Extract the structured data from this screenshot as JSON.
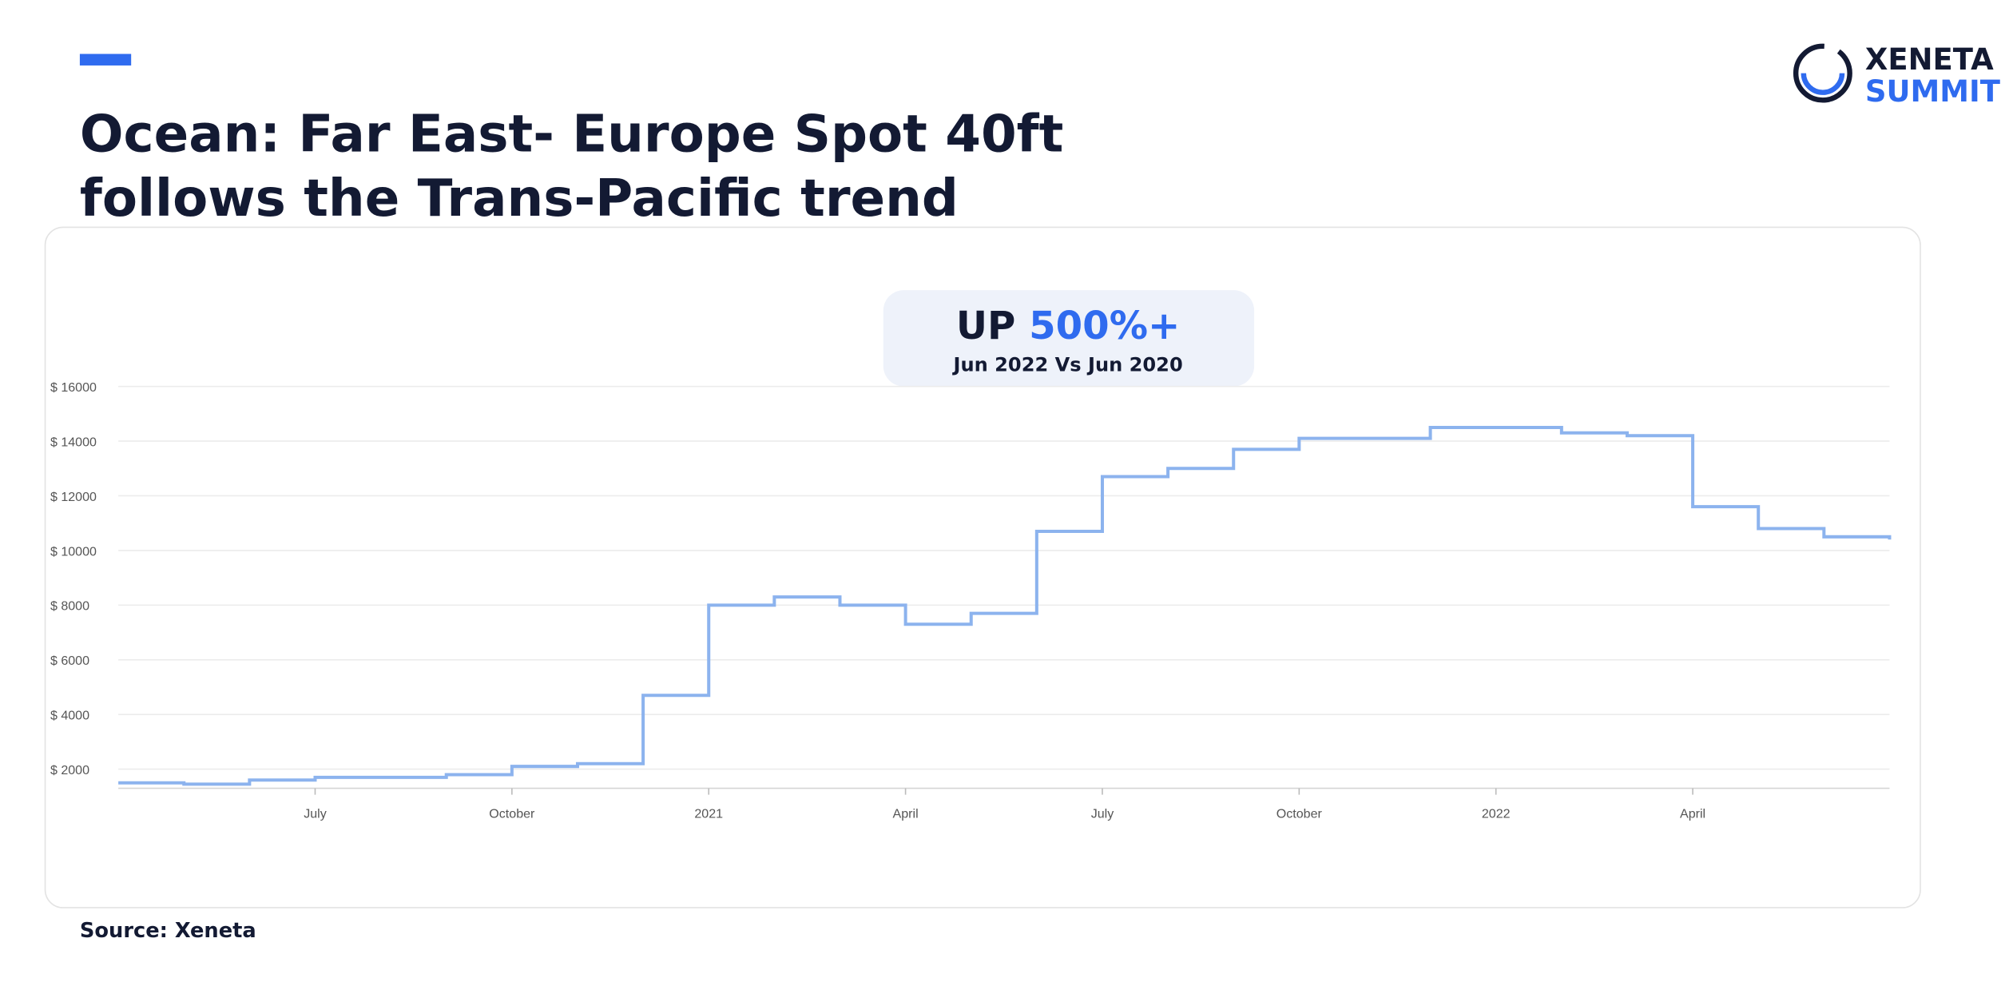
{
  "logo": [
    "XENETA",
    "SUMMIT"
  ],
  "chart_data": {
    "type": "step",
    "title": [
      "Ocean: Far East- Europe Spot 40ft",
      "follows the Trans-Pacific trend"
    ],
    "annotation": {
      "prefix": "UP",
      "highlight": "500%+",
      "caption": "Jun 2022 Vs Jun 2020"
    },
    "source": "Source: Xeneta",
    "color": "#8cb3ee",
    "x": [
      "2020-04",
      "2020-05",
      "2020-06",
      "2020-07",
      "2020-08",
      "2020-09",
      "2020-10",
      "2020-11",
      "2020-12",
      "2021-01",
      "2021-02",
      "2021-03",
      "2021-04",
      "2021-05",
      "2021-06",
      "2021-07",
      "2021-08",
      "2021-09",
      "2021-10",
      "2021-11",
      "2021-12",
      "2022-01",
      "2022-02",
      "2022-03",
      "2022-04",
      "2022-05",
      "2022-06",
      "2022-07"
    ],
    "values": [
      1500,
      1450,
      1600,
      1700,
      1700,
      1800,
      2100,
      2200,
      4700,
      8000,
      8300,
      8000,
      7300,
      7700,
      10700,
      12700,
      13000,
      13700,
      14100,
      14100,
      14500,
      14500,
      14300,
      14200,
      11600,
      10800,
      10500,
      10400
    ],
    "xlim": [
      "2020-04",
      "2022-07"
    ],
    "xticks": [
      {
        "value": "2020-07",
        "label": "July"
      },
      {
        "value": "2020-10",
        "label": "October"
      },
      {
        "value": "2021-01",
        "label": "2021"
      },
      {
        "value": "2021-04",
        "label": "April"
      },
      {
        "value": "2021-07",
        "label": "July"
      },
      {
        "value": "2021-10",
        "label": "October"
      },
      {
        "value": "2022-01",
        "label": "2022"
      },
      {
        "value": "2022-04",
        "label": "April"
      }
    ],
    "ylim": [
      1300,
      16000
    ],
    "yticks": [
      {
        "value": 2000,
        "label": "$ 2000"
      },
      {
        "value": 4000,
        "label": "$ 4000"
      },
      {
        "value": 6000,
        "label": "$ 6000"
      },
      {
        "value": 8000,
        "label": "$ 8000"
      },
      {
        "value": 10000,
        "label": "$ 10000"
      },
      {
        "value": 12000,
        "label": "$ 12000"
      },
      {
        "value": 14000,
        "label": "$ 14000"
      },
      {
        "value": 16000,
        "label": "$ 16000"
      }
    ],
    "grid": true
  }
}
